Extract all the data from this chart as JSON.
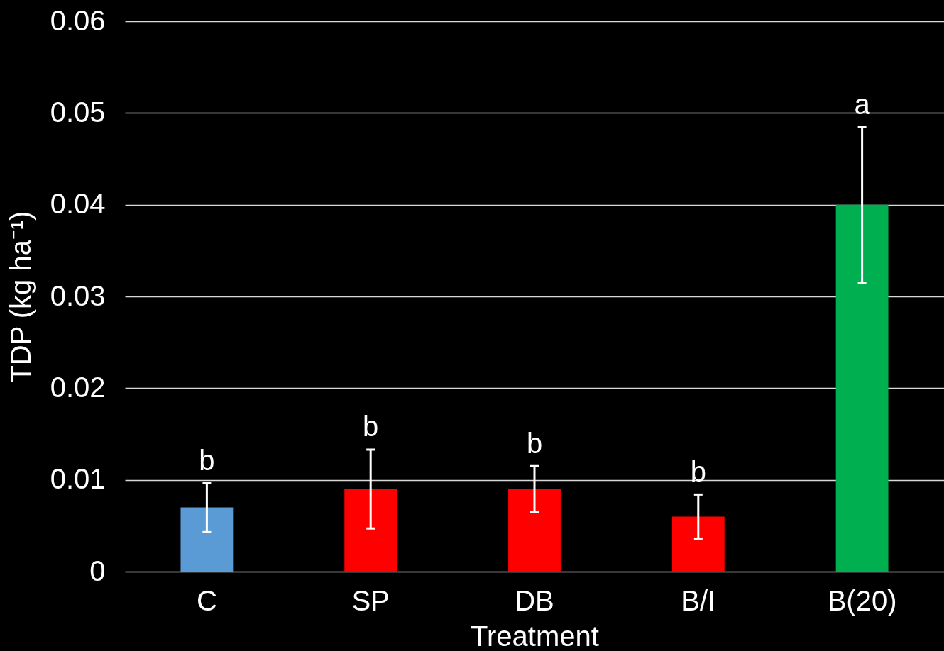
{
  "chart_data": {
    "type": "bar",
    "xlabel": "Treatment",
    "ylabel": "TDP (kg ha⁻¹)",
    "categories": [
      "C",
      "SP",
      "DB",
      "B/I",
      "B(20)"
    ],
    "values": [
      0.007,
      0.009,
      0.009,
      0.006,
      0.04
    ],
    "colors": [
      "#5b9bd5",
      "#ff0000",
      "#ff0000",
      "#ff0000",
      "#00b050"
    ],
    "errors": [
      0.0027,
      0.0043,
      0.0025,
      0.0024,
      0.0085
    ],
    "ylim": [
      0,
      0.06
    ],
    "yticks": [
      0,
      0.01,
      0.02,
      0.03,
      0.04,
      0.05,
      0.06
    ],
    "grid": "y",
    "annotations": [
      {
        "text": "b",
        "x": "C",
        "y": 0.0097
      },
      {
        "text": "b",
        "x": "SP",
        "y": 0.0134
      },
      {
        "text": "b",
        "x": "DB",
        "y": 0.0115
      },
      {
        "text": "b",
        "x": "B/I",
        "y": 0.0084
      },
      {
        "text": "a",
        "x": "B(20)",
        "y": 0.0485
      }
    ]
  }
}
